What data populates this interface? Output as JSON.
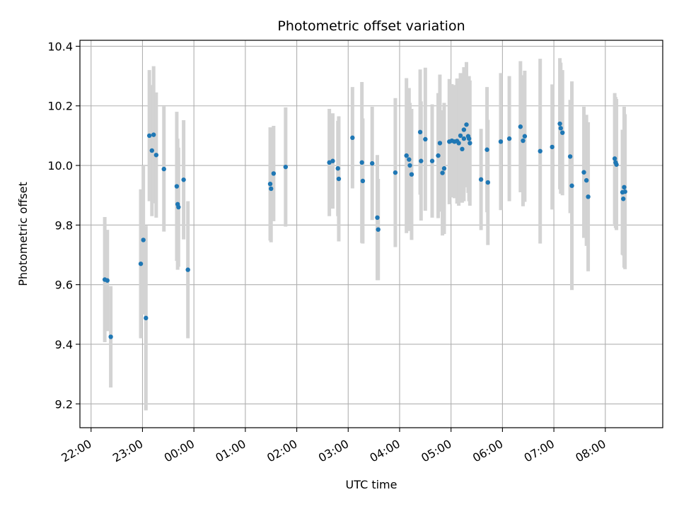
{
  "chart_data": {
    "type": "scatter",
    "title": "Photometric offset variation",
    "xlabel": "UTC time",
    "ylabel": "Photometric offset",
    "x_unit": "UTC (HH:MM)",
    "xlim": [
      "21:47",
      "09:07"
    ],
    "ylim": [
      9.12,
      10.42
    ],
    "x_ticks": [
      "22:00",
      "23:00",
      "00:00",
      "01:00",
      "02:00",
      "03:00",
      "04:00",
      "05:00",
      "06:00",
      "07:00",
      "08:00"
    ],
    "y_ticks": [
      9.2,
      9.4,
      9.6,
      9.8,
      10.0,
      10.2,
      10.4
    ],
    "y_tick_labels": [
      "9.2",
      "9.4",
      "9.6",
      "9.8",
      "10.0",
      "10.2",
      "10.4"
    ],
    "grid": true,
    "colors": {
      "marker": "#1f77b4",
      "errorbar": "#d3d3d3",
      "grid": "#b0b0b0"
    },
    "series": [
      {
        "points": [
          {
            "x": "22:16",
            "y": 9.617,
            "err": 0.21
          },
          {
            "x": "22:19",
            "y": 9.614,
            "err": 0.17
          },
          {
            "x": "22:23",
            "y": 9.425,
            "err": 0.17
          },
          {
            "x": "22:58",
            "y": 9.67,
            "err": 0.25
          },
          {
            "x": "23:01",
            "y": 9.75,
            "err": 0.25
          },
          {
            "x": "23:04",
            "y": 9.488,
            "err": 0.31
          },
          {
            "x": "23:08",
            "y": 10.1,
            "err": 0.22
          },
          {
            "x": "23:11",
            "y": 10.05,
            "err": 0.22
          },
          {
            "x": "23:13",
            "y": 10.103,
            "err": 0.23
          },
          {
            "x": "23:16",
            "y": 10.035,
            "err": 0.21
          },
          {
            "x": "23:25",
            "y": 9.988,
            "err": 0.21
          },
          {
            "x": "23:40",
            "y": 9.93,
            "err": 0.25
          },
          {
            "x": "23:41",
            "y": 9.87,
            "err": 0.22
          },
          {
            "x": "23:42",
            "y": 9.86,
            "err": 0.2
          },
          {
            "x": "23:48",
            "y": 9.952,
            "err": 0.2
          },
          {
            "x": "23:53",
            "y": 9.65,
            "err": 0.23
          },
          {
            "x": "01:29",
            "y": 9.938,
            "err": 0.19
          },
          {
            "x": "01:30",
            "y": 9.922,
            "err": 0.18
          },
          {
            "x": "01:33",
            "y": 9.973,
            "err": 0.16
          },
          {
            "x": "01:47",
            "y": 9.995,
            "err": 0.2
          },
          {
            "x": "02:38",
            "y": 10.01,
            "err": 0.18
          },
          {
            "x": "02:42",
            "y": 10.015,
            "err": 0.16
          },
          {
            "x": "02:48",
            "y": 9.99,
            "err": 0.16
          },
          {
            "x": "02:49",
            "y": 9.955,
            "err": 0.21
          },
          {
            "x": "03:05",
            "y": 10.093,
            "err": 0.17
          },
          {
            "x": "03:16",
            "y": 10.01,
            "err": 0.27
          },
          {
            "x": "03:17",
            "y": 9.948,
            "err": 0.21
          },
          {
            "x": "03:28",
            "y": 10.007,
            "err": 0.19
          },
          {
            "x": "03:34",
            "y": 9.825,
            "err": 0.21
          },
          {
            "x": "03:35",
            "y": 9.785,
            "err": 0.17
          },
          {
            "x": "03:55",
            "y": 9.976,
            "err": 0.25
          },
          {
            "x": "04:08",
            "y": 10.033,
            "err": 0.26
          },
          {
            "x": "04:11",
            "y": 10.02,
            "err": 0.24
          },
          {
            "x": "04:12",
            "y": 10.0,
            "err": 0.21
          },
          {
            "x": "04:14",
            "y": 9.97,
            "err": 0.22
          },
          {
            "x": "04:24",
            "y": 10.112,
            "err": 0.21
          },
          {
            "x": "04:25",
            "y": 10.015,
            "err": 0.2
          },
          {
            "x": "04:30",
            "y": 10.088,
            "err": 0.24
          },
          {
            "x": "04:38",
            "y": 10.015,
            "err": 0.19
          },
          {
            "x": "04:45",
            "y": 10.033,
            "err": 0.21
          },
          {
            "x": "04:47",
            "y": 10.075,
            "err": 0.23
          },
          {
            "x": "04:50",
            "y": 9.975,
            "err": 0.21
          },
          {
            "x": "04:52",
            "y": 9.99,
            "err": 0.22
          },
          {
            "x": "04:58",
            "y": 10.08,
            "err": 0.21
          },
          {
            "x": "05:01",
            "y": 10.083,
            "err": 0.19
          },
          {
            "x": "05:04",
            "y": 10.08,
            "err": 0.19
          },
          {
            "x": "05:07",
            "y": 10.082,
            "err": 0.21
          },
          {
            "x": "05:09",
            "y": 10.075,
            "err": 0.21
          },
          {
            "x": "05:11",
            "y": 10.1,
            "err": 0.21
          },
          {
            "x": "05:13",
            "y": 10.055,
            "err": 0.18
          },
          {
            "x": "05:15",
            "y": 10.12,
            "err": 0.21
          },
          {
            "x": "05:15",
            "y": 10.09,
            "err": 0.21
          },
          {
            "x": "05:18",
            "y": 10.137,
            "err": 0.21
          },
          {
            "x": "05:20",
            "y": 10.098,
            "err": 0.19
          },
          {
            "x": "05:21",
            "y": 10.09,
            "err": 0.21
          },
          {
            "x": "05:22",
            "y": 10.075,
            "err": 0.21
          },
          {
            "x": "05:35",
            "y": 9.953,
            "err": 0.17
          },
          {
            "x": "05:42",
            "y": 10.053,
            "err": 0.21
          },
          {
            "x": "05:43",
            "y": 9.943,
            "err": 0.21
          },
          {
            "x": "05:58",
            "y": 10.08,
            "err": 0.23
          },
          {
            "x": "06:08",
            "y": 10.09,
            "err": 0.21
          },
          {
            "x": "06:21",
            "y": 10.13,
            "err": 0.22
          },
          {
            "x": "06:24",
            "y": 10.083,
            "err": 0.22
          },
          {
            "x": "06:26",
            "y": 10.098,
            "err": 0.22
          },
          {
            "x": "06:44",
            "y": 10.048,
            "err": 0.31
          },
          {
            "x": "06:58",
            "y": 10.062,
            "err": 0.21
          },
          {
            "x": "07:07",
            "y": 10.14,
            "err": 0.22
          },
          {
            "x": "07:08",
            "y": 10.125,
            "err": 0.22
          },
          {
            "x": "07:10",
            "y": 10.11,
            "err": 0.21
          },
          {
            "x": "07:19",
            "y": 10.03,
            "err": 0.19
          },
          {
            "x": "07:21",
            "y": 9.932,
            "err": 0.35
          },
          {
            "x": "07:35",
            "y": 9.977,
            "err": 0.22
          },
          {
            "x": "07:38",
            "y": 9.95,
            "err": 0.22
          },
          {
            "x": "07:40",
            "y": 9.895,
            "err": 0.25
          },
          {
            "x": "08:11",
            "y": 10.023,
            "err": 0.22
          },
          {
            "x": "08:12",
            "y": 10.01,
            "err": 0.22
          },
          {
            "x": "08:13",
            "y": 10.003,
            "err": 0.22
          },
          {
            "x": "08:20",
            "y": 9.91,
            "err": 0.21
          },
          {
            "x": "08:21",
            "y": 9.888,
            "err": 0.19
          },
          {
            "x": "08:22",
            "y": 9.927,
            "err": 0.27
          },
          {
            "x": "08:23",
            "y": 9.912,
            "err": 0.26
          }
        ]
      }
    ]
  }
}
